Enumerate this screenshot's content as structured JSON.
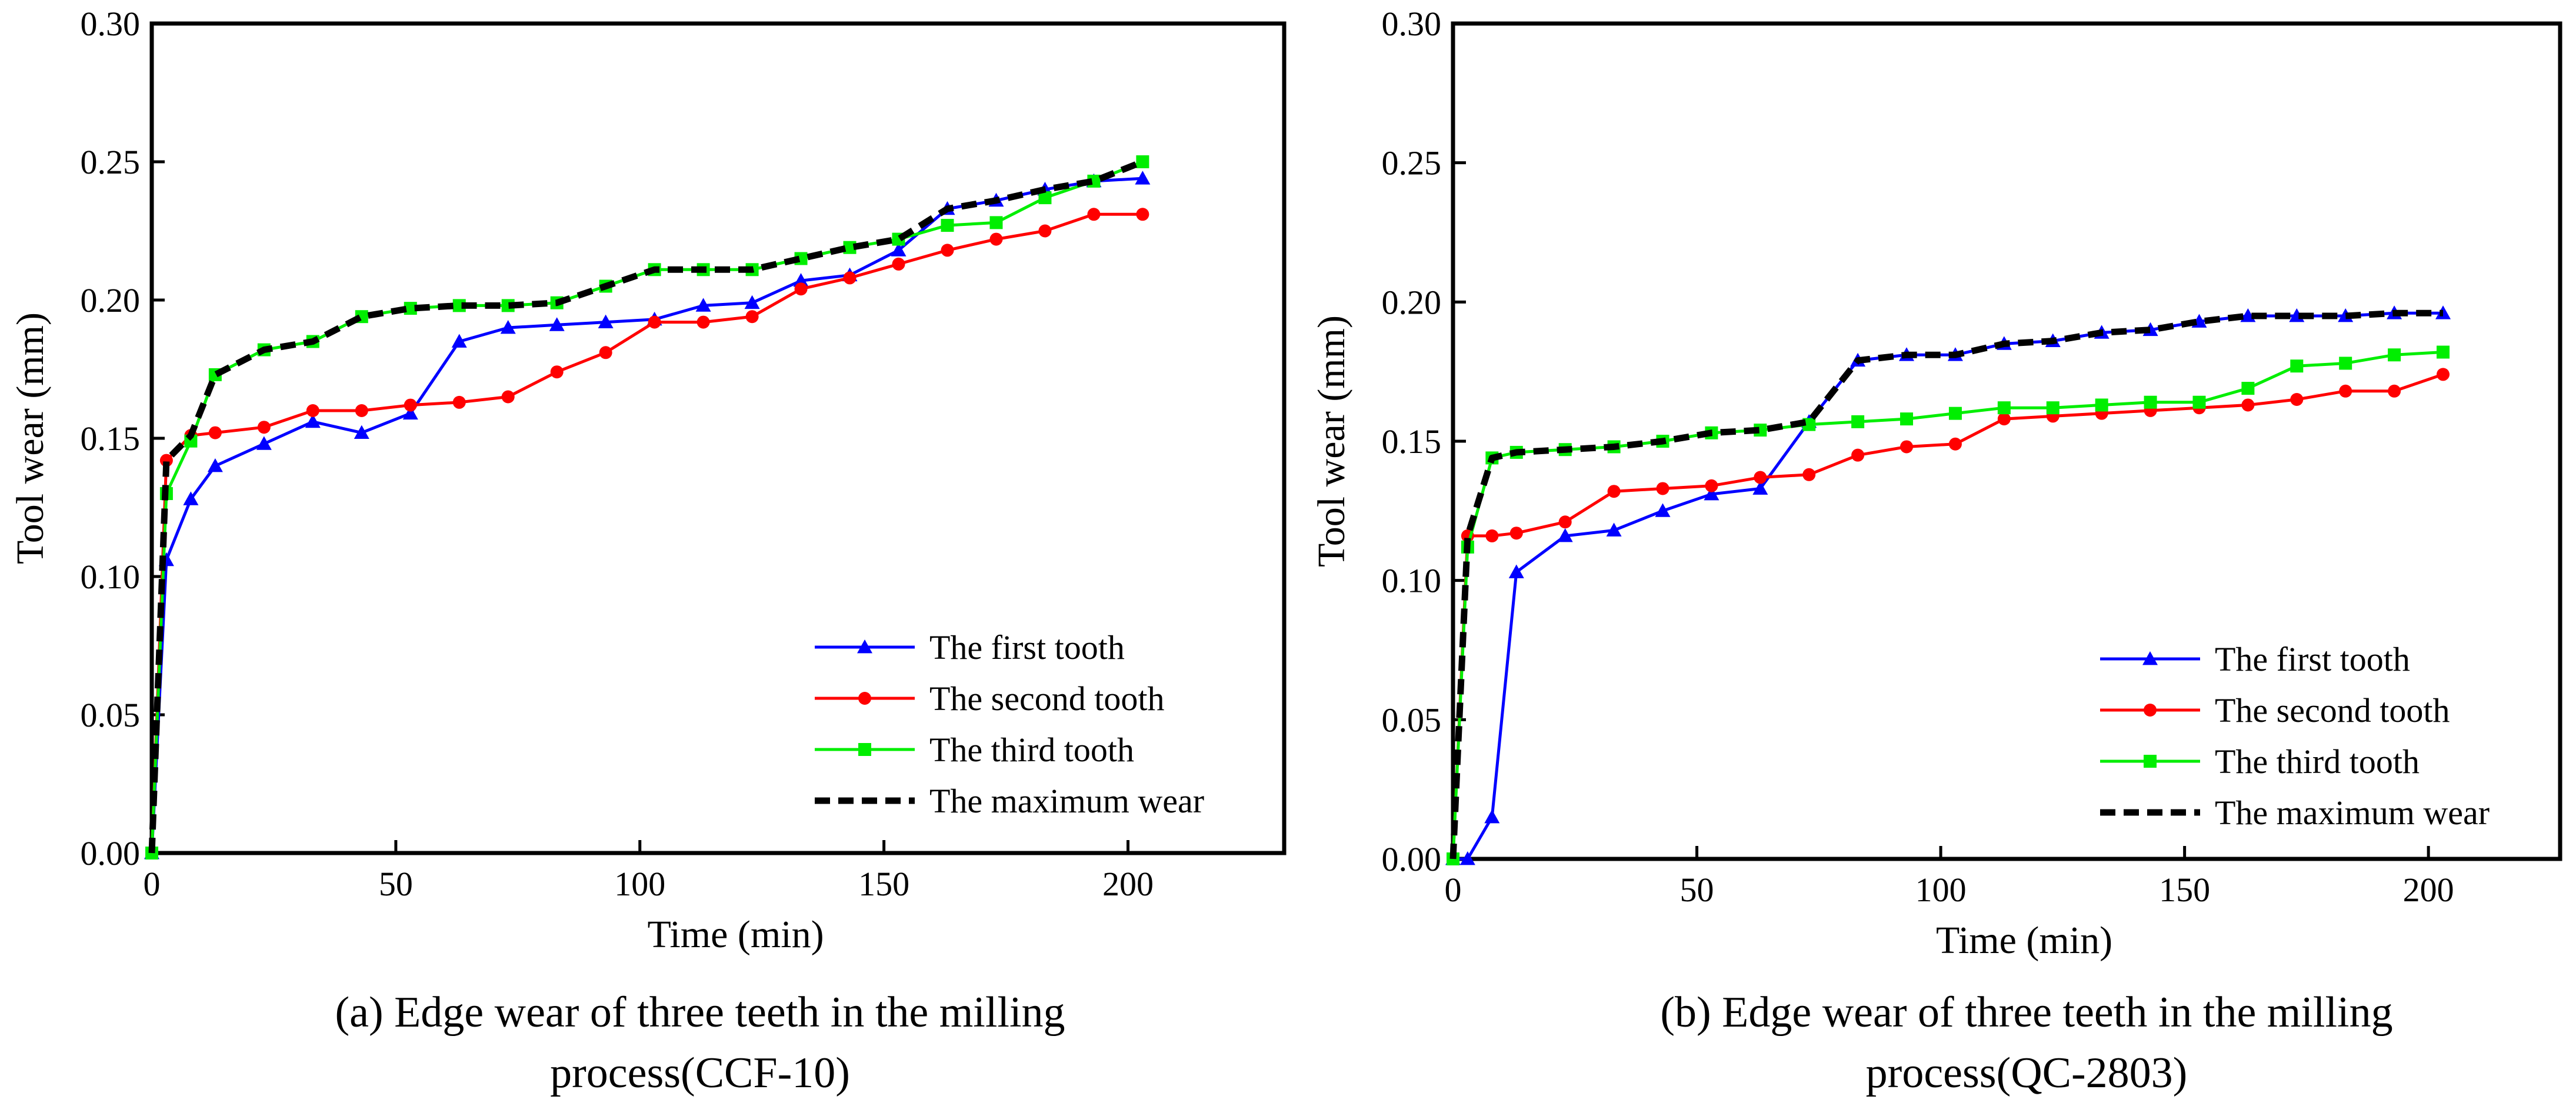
{
  "chart_data": [
    {
      "type": "line",
      "panel": "a",
      "caption_lines": [
        "(a) Edge wear of three teeth  in the milling",
        "process(CCF-10)"
      ],
      "xlabel": "Time (min)",
      "ylabel": "Tool wear (mm)",
      "xlim": [
        0,
        232
      ],
      "ylim": [
        0,
        0.3
      ],
      "xticks": [
        0,
        50,
        100,
        150,
        200
      ],
      "xtick_labels": [
        "0",
        "50",
        "100",
        "150",
        "200"
      ],
      "yticks": [
        0,
        0.05,
        0.1,
        0.15,
        0.2,
        0.25,
        0.3
      ],
      "ytick_labels": [
        "0.00",
        "0.05",
        "0.10",
        "0.15",
        "0.20",
        "0.25",
        "0.30"
      ],
      "legend_position": "bottom-right",
      "series": [
        {
          "name": "The first tooth",
          "color": "#0000ff",
          "marker": "triangle",
          "x": [
            0,
            3,
            8,
            13,
            23,
            33,
            43,
            53,
            63,
            73,
            83,
            93,
            103,
            113,
            123,
            133,
            143,
            153,
            163,
            173,
            183,
            193,
            203
          ],
          "y": [
            0,
            0.106,
            0.128,
            0.14,
            0.148,
            0.156,
            0.152,
            0.159,
            0.185,
            0.19,
            0.191,
            0.192,
            0.193,
            0.198,
            0.199,
            0.207,
            0.209,
            0.218,
            0.233,
            0.236,
            0.24,
            0.243,
            0.244
          ]
        },
        {
          "name": "The second tooth",
          "color": "#ff0000",
          "marker": "circle",
          "x": [
            0,
            3,
            8,
            13,
            23,
            33,
            43,
            53,
            63,
            73,
            83,
            93,
            103,
            113,
            123,
            133,
            143,
            153,
            163,
            173,
            183,
            193,
            203
          ],
          "y": [
            0,
            0.142,
            0.151,
            0.152,
            0.154,
            0.16,
            0.16,
            0.162,
            0.163,
            0.165,
            0.174,
            0.181,
            0.192,
            0.192,
            0.194,
            0.204,
            0.208,
            0.213,
            0.218,
            0.222,
            0.225,
            0.231,
            0.231
          ]
        },
        {
          "name": "The third tooth",
          "color": "#00ee00",
          "marker": "square",
          "x": [
            0,
            3,
            8,
            13,
            23,
            33,
            43,
            53,
            63,
            73,
            83,
            93,
            103,
            113,
            123,
            133,
            143,
            153,
            163,
            173,
            183,
            193,
            203
          ],
          "y": [
            0,
            0.13,
            0.149,
            0.173,
            0.182,
            0.185,
            0.194,
            0.197,
            0.198,
            0.198,
            0.199,
            0.205,
            0.211,
            0.211,
            0.211,
            0.215,
            0.219,
            0.222,
            0.227,
            0.228,
            0.237,
            0.243,
            0.25
          ]
        },
        {
          "name": "The maximum wear",
          "color": "#000000",
          "marker": "none",
          "dashed": true,
          "x": [
            0,
            3,
            8,
            13,
            23,
            33,
            43,
            53,
            63,
            73,
            83,
            93,
            103,
            113,
            123,
            133,
            143,
            153,
            163,
            173,
            183,
            193,
            203
          ],
          "y": [
            0,
            0.142,
            0.151,
            0.173,
            0.182,
            0.185,
            0.194,
            0.197,
            0.198,
            0.198,
            0.199,
            0.205,
            0.211,
            0.211,
            0.211,
            0.215,
            0.219,
            0.222,
            0.233,
            0.236,
            0.24,
            0.243,
            0.25
          ]
        }
      ]
    },
    {
      "type": "line",
      "panel": "b",
      "caption_lines": [
        "(b) Edge wear of three teeth  in the milling",
        "process(QC-2803)"
      ],
      "xlabel": "Time (min)",
      "ylabel": "Tool wear (mm)",
      "xlim": [
        0,
        227
      ],
      "ylim": [
        0,
        0.3
      ],
      "xticks": [
        0,
        50,
        100,
        150,
        200
      ],
      "xtick_labels": [
        "0",
        "50",
        "100",
        "150",
        "200"
      ],
      "yticks": [
        0,
        0.05,
        0.1,
        0.15,
        0.2,
        0.25,
        0.3
      ],
      "ytick_labels": [
        "0.00",
        "0.05",
        "0.10",
        "0.15",
        "0.20",
        "0.25",
        "0.30"
      ],
      "legend_position": "bottom-right",
      "series": [
        {
          "name": "The first tooth",
          "color": "#0000ff",
          "marker": "triangle",
          "x": [
            0,
            3,
            8,
            13,
            23,
            33,
            43,
            53,
            63,
            73,
            83,
            93,
            103,
            113,
            123,
            133,
            143,
            153,
            163,
            173,
            183,
            193,
            203
          ],
          "y": [
            0,
            0,
            0.015,
            0.103,
            0.116,
            0.118,
            0.125,
            0.131,
            0.133,
            0.157,
            0.179,
            0.181,
            0.181,
            0.185,
            0.186,
            0.189,
            0.19,
            0.193,
            0.195,
            0.195,
            0.195,
            0.196,
            0.196
          ]
        },
        {
          "name": "The second tooth",
          "color": "#ff0000",
          "marker": "circle",
          "x": [
            0,
            3,
            8,
            13,
            23,
            33,
            43,
            53,
            63,
            73,
            83,
            93,
            103,
            113,
            123,
            133,
            143,
            153,
            163,
            173,
            183,
            193,
            203
          ],
          "y": [
            0,
            0.116,
            0.116,
            0.117,
            0.121,
            0.132,
            0.133,
            0.134,
            0.137,
            0.138,
            0.145,
            0.148,
            0.149,
            0.158,
            0.159,
            0.16,
            0.161,
            0.162,
            0.163,
            0.165,
            0.168,
            0.168,
            0.174
          ]
        },
        {
          "name": "The third tooth",
          "color": "#00ee00",
          "marker": "square",
          "x": [
            0,
            3,
            8,
            13,
            23,
            33,
            43,
            53,
            63,
            73,
            83,
            93,
            103,
            113,
            123,
            133,
            143,
            153,
            163,
            173,
            183,
            193,
            203
          ],
          "y": [
            0,
            0.112,
            0.144,
            0.146,
            0.147,
            0.148,
            0.15,
            0.153,
            0.154,
            0.156,
            0.157,
            0.158,
            0.16,
            0.162,
            0.162,
            0.163,
            0.164,
            0.164,
            0.169,
            0.177,
            0.178,
            0.181,
            0.182
          ]
        },
        {
          "name": "The maximum wear",
          "color": "#000000",
          "marker": "none",
          "dashed": true,
          "x": [
            0,
            3,
            8,
            13,
            23,
            33,
            43,
            53,
            63,
            73,
            83,
            93,
            103,
            113,
            123,
            133,
            143,
            153,
            163,
            173,
            183,
            193,
            203
          ],
          "y": [
            0,
            0.116,
            0.144,
            0.146,
            0.147,
            0.148,
            0.15,
            0.153,
            0.154,
            0.157,
            0.179,
            0.181,
            0.181,
            0.185,
            0.186,
            0.189,
            0.19,
            0.193,
            0.195,
            0.195,
            0.195,
            0.196,
            0.196
          ]
        }
      ]
    }
  ]
}
